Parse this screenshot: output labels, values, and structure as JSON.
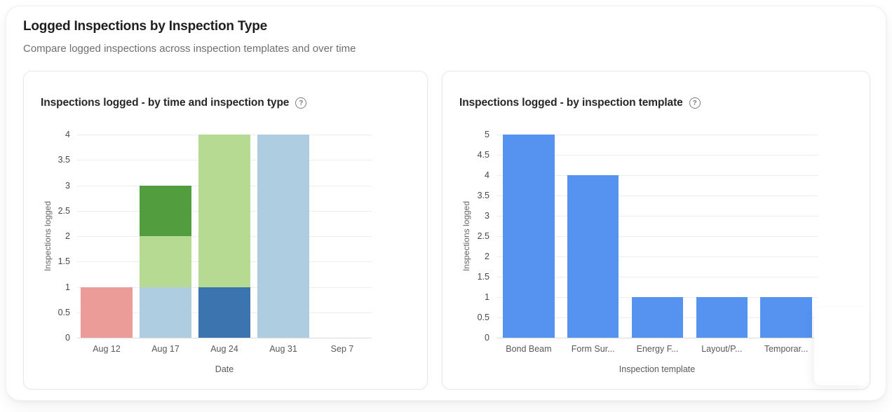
{
  "page": {
    "title": "Logged Inspections by Inspection Type",
    "subtitle": "Compare logged inspections across inspection templates and over time"
  },
  "ui": {
    "help_glyph": "?",
    "colors": {
      "accent_blue": "#5692f0",
      "salmon": "#eb9c98",
      "dark_blue": "#3b74ae",
      "light_blue": "#aecde0",
      "light_green": "#b7da92",
      "dark_green": "#529e3f",
      "gridline": "#ededed"
    }
  },
  "chart_data": [
    {
      "type": "bar",
      "stacked": true,
      "title": "Inspections logged - by time and inspection type",
      "xlabel": "Date",
      "ylabel": "Inspections logged",
      "categories": [
        "Aug 12",
        "Aug 17",
        "Aug 24",
        "Aug 31",
        "Sep 7"
      ],
      "series": [
        {
          "name": "type-salmon",
          "color": "#eb9c98",
          "values": [
            1,
            0,
            0,
            0,
            0
          ]
        },
        {
          "name": "type-dark-blue",
          "color": "#3b74ae",
          "values": [
            0,
            0,
            1,
            0,
            0
          ]
        },
        {
          "name": "type-light-blue",
          "color": "#aecde0",
          "values": [
            0,
            1,
            0,
            4,
            0
          ]
        },
        {
          "name": "type-light-green",
          "color": "#b7da92",
          "values": [
            0,
            1,
            3,
            0,
            0
          ]
        },
        {
          "name": "type-dark-green",
          "color": "#529e3f",
          "values": [
            0,
            1,
            0,
            0,
            0
          ]
        }
      ],
      "totals": [
        1,
        3,
        4,
        4,
        0
      ],
      "ylim": [
        0,
        4
      ],
      "yticks": [
        0,
        0.5,
        1,
        1.5,
        2,
        2.5,
        3,
        3.5,
        4
      ],
      "grid": true,
      "legend": "none",
      "bar_width_frac": 0.89
    },
    {
      "type": "bar",
      "stacked": false,
      "title": "Inspections logged - by inspection template",
      "xlabel": "Inspection template",
      "ylabel": "Inspections logged",
      "categories": [
        "Bond Beam",
        "Form Sur...",
        "Energy F...",
        "Layout/P...",
        "Temporar..."
      ],
      "values": [
        5,
        4,
        1,
        1,
        1
      ],
      "bar_color": "#5692f0",
      "ylim": [
        0,
        5
      ],
      "yticks": [
        0,
        0.5,
        1,
        1.5,
        2,
        2.5,
        3,
        3.5,
        4,
        4.5,
        5
      ],
      "grid": true,
      "legend": "none",
      "bar_width_frac": 0.8
    }
  ]
}
